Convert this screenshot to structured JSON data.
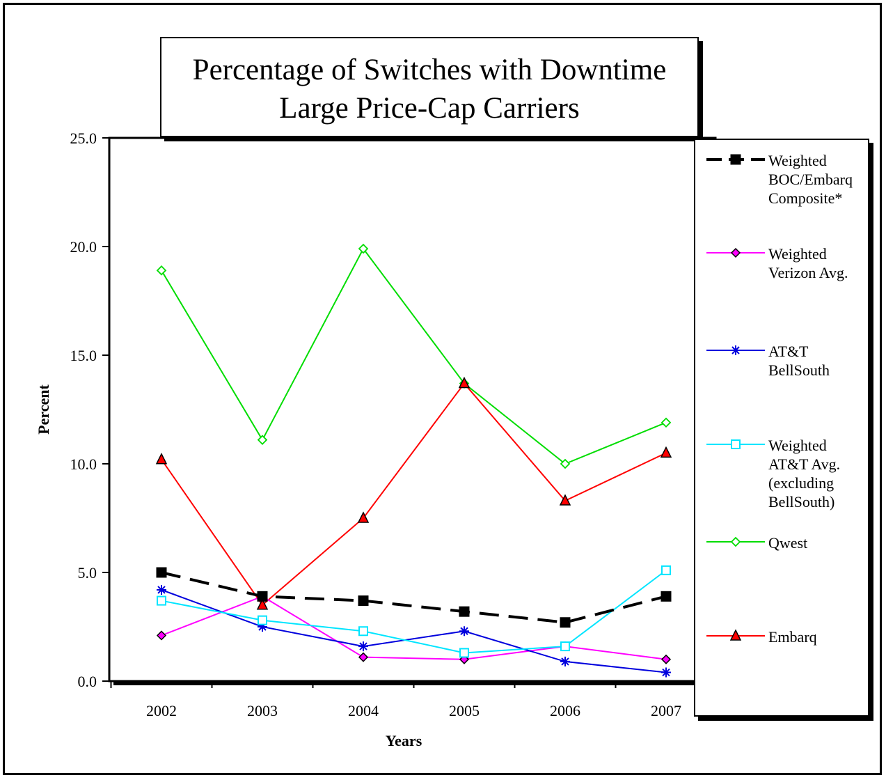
{
  "chart_data": {
    "type": "line",
    "title": "Percentage of Switches with Downtime",
    "subtitle": "Large Price-Cap Carriers",
    "xlabel": "Years",
    "ylabel": "Percent",
    "categories": [
      "2002",
      "2003",
      "2004",
      "2005",
      "2006",
      "2007"
    ],
    "ylim": [
      0,
      25
    ],
    "yticks": [
      "0.0",
      "5.0",
      "10.0",
      "15.0",
      "20.0",
      "25.0"
    ],
    "grid": false,
    "legend_position": "right",
    "series": [
      {
        "name": "Weighted BOC/Embarq Composite*",
        "color": "#000000",
        "marker": "square-filled",
        "dashed": true,
        "values": [
          5.0,
          3.9,
          3.7,
          3.2,
          2.7,
          3.9
        ]
      },
      {
        "name": "Weighted Verizon Avg.",
        "color": "#ff00ff",
        "marker": "diamond-filled",
        "dashed": false,
        "values": [
          2.1,
          3.9,
          1.1,
          1.0,
          1.6,
          1.0
        ]
      },
      {
        "name": "AT&T BellSouth",
        "color": "#0000dd",
        "marker": "asterisk",
        "dashed": false,
        "values": [
          4.2,
          2.5,
          1.6,
          2.3,
          0.9,
          0.4
        ]
      },
      {
        "name": "Weighted AT&T Avg. (excluding BellSouth)",
        "color": "#00e5ff",
        "marker": "square-open",
        "dashed": false,
        "values": [
          3.7,
          2.8,
          2.3,
          1.3,
          1.6,
          5.1
        ]
      },
      {
        "name": "Qwest",
        "color": "#00dd00",
        "marker": "diamond-open",
        "dashed": false,
        "values": [
          18.9,
          11.1,
          19.9,
          13.7,
          10.0,
          11.9
        ]
      },
      {
        "name": "Embarq",
        "color": "#ff0000",
        "marker": "triangle-filled",
        "dashed": false,
        "values": [
          10.2,
          3.5,
          7.5,
          13.7,
          8.3,
          10.5
        ]
      }
    ]
  },
  "legend_labels": [
    "Weighted\nBOC/Embarq\nComposite*",
    "Weighted\nVerizon Avg.",
    "AT&T\nBellSouth",
    "Weighted\nAT&T Avg.\n(excluding\nBellSouth)",
    "Qwest",
    "Embarq"
  ]
}
